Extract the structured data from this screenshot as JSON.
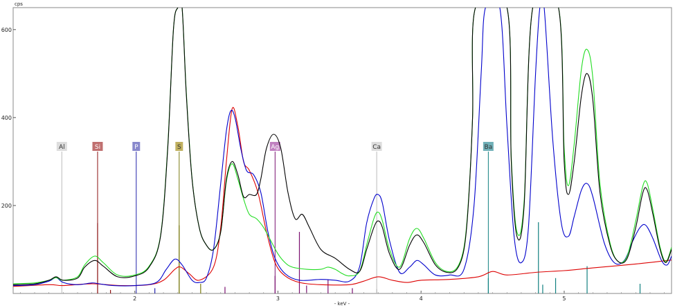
{
  "chart_data": {
    "type": "line",
    "ylabel": "cps",
    "xlabel": "- keV -",
    "xlim": [
      1.15,
      5.75
    ],
    "ylim": [
      0,
      650
    ],
    "x_ticks": [
      2,
      3,
      4,
      5
    ],
    "y_ticks": [
      200,
      400,
      600
    ],
    "grid": false,
    "legend": "none",
    "series": [
      {
        "color": "#000000",
        "points": [
          [
            1.15,
            20
          ],
          [
            1.3,
            22
          ],
          [
            1.4,
            30
          ],
          [
            1.45,
            38
          ],
          [
            1.5,
            30
          ],
          [
            1.6,
            35
          ],
          [
            1.65,
            60
          ],
          [
            1.72,
            75
          ],
          [
            1.78,
            62
          ],
          [
            1.88,
            38
          ],
          [
            2.0,
            40
          ],
          [
            2.1,
            60
          ],
          [
            2.18,
            130
          ],
          [
            2.23,
            330
          ],
          [
            2.27,
            600
          ],
          [
            2.3,
            650
          ],
          [
            2.33,
            650
          ],
          [
            2.36,
            450
          ],
          [
            2.4,
            260
          ],
          [
            2.45,
            150
          ],
          [
            2.5,
            110
          ],
          [
            2.55,
            100
          ],
          [
            2.6,
            140
          ],
          [
            2.64,
            260
          ],
          [
            2.68,
            300
          ],
          [
            2.72,
            270
          ],
          [
            2.76,
            220
          ],
          [
            2.8,
            225
          ],
          [
            2.85,
            225
          ],
          [
            2.88,
            260
          ],
          [
            2.92,
            330
          ],
          [
            2.97,
            362
          ],
          [
            3.02,
            330
          ],
          [
            3.07,
            230
          ],
          [
            3.12,
            170
          ],
          [
            3.17,
            180
          ],
          [
            3.22,
            150
          ],
          [
            3.3,
            100
          ],
          [
            3.4,
            80
          ],
          [
            3.5,
            55
          ],
          [
            3.57,
            50
          ],
          [
            3.62,
            100
          ],
          [
            3.67,
            150
          ],
          [
            3.7,
            165
          ],
          [
            3.73,
            150
          ],
          [
            3.78,
            90
          ],
          [
            3.85,
            55
          ],
          [
            3.92,
            110
          ],
          [
            3.97,
            133
          ],
          [
            4.02,
            115
          ],
          [
            4.1,
            65
          ],
          [
            4.18,
            48
          ],
          [
            4.25,
            55
          ],
          [
            4.3,
            100
          ],
          [
            4.33,
            200
          ],
          [
            4.36,
            400
          ],
          [
            4.38,
            650
          ],
          [
            4.6,
            650
          ],
          [
            4.63,
            300
          ],
          [
            4.67,
            130
          ],
          [
            4.72,
            200
          ],
          [
            4.78,
            650
          ],
          [
            4.96,
            650
          ],
          [
            5.0,
            300
          ],
          [
            5.03,
            225
          ],
          [
            5.07,
            300
          ],
          [
            5.12,
            450
          ],
          [
            5.16,
            500
          ],
          [
            5.2,
            440
          ],
          [
            5.25,
            230
          ],
          [
            5.32,
            110
          ],
          [
            5.38,
            72
          ],
          [
            5.44,
            80
          ],
          [
            5.5,
            150
          ],
          [
            5.55,
            230
          ],
          [
            5.58,
            235
          ],
          [
            5.62,
            180
          ],
          [
            5.67,
            100
          ],
          [
            5.71,
            70
          ],
          [
            5.75,
            100
          ]
        ]
      },
      {
        "color": "#22dd22",
        "points": [
          [
            1.15,
            22
          ],
          [
            1.3,
            24
          ],
          [
            1.4,
            30
          ],
          [
            1.45,
            36
          ],
          [
            1.5,
            30
          ],
          [
            1.6,
            38
          ],
          [
            1.65,
            65
          ],
          [
            1.72,
            85
          ],
          [
            1.78,
            70
          ],
          [
            1.88,
            42
          ],
          [
            2.0,
            42
          ],
          [
            2.1,
            62
          ],
          [
            2.18,
            132
          ],
          [
            2.23,
            335
          ],
          [
            2.27,
            600
          ],
          [
            2.3,
            650
          ],
          [
            2.33,
            650
          ],
          [
            2.36,
            455
          ],
          [
            2.4,
            262
          ],
          [
            2.45,
            150
          ],
          [
            2.5,
            110
          ],
          [
            2.55,
            100
          ],
          [
            2.6,
            140
          ],
          [
            2.64,
            255
          ],
          [
            2.68,
            295
          ],
          [
            2.72,
            260
          ],
          [
            2.76,
            215
          ],
          [
            2.8,
            180
          ],
          [
            2.85,
            170
          ],
          [
            2.9,
            150
          ],
          [
            2.95,
            120
          ],
          [
            3.0,
            90
          ],
          [
            3.05,
            70
          ],
          [
            3.1,
            60
          ],
          [
            3.2,
            55
          ],
          [
            3.3,
            55
          ],
          [
            3.35,
            60
          ],
          [
            3.4,
            55
          ],
          [
            3.45,
            45
          ],
          [
            3.5,
            40
          ],
          [
            3.57,
            50
          ],
          [
            3.62,
            110
          ],
          [
            3.67,
            170
          ],
          [
            3.7,
            185
          ],
          [
            3.73,
            165
          ],
          [
            3.78,
            100
          ],
          [
            3.85,
            60
          ],
          [
            3.92,
            125
          ],
          [
            3.97,
            148
          ],
          [
            4.02,
            125
          ],
          [
            4.1,
            70
          ],
          [
            4.18,
            50
          ],
          [
            4.25,
            58
          ],
          [
            4.3,
            105
          ],
          [
            4.33,
            205
          ],
          [
            4.36,
            400
          ],
          [
            4.38,
            650
          ],
          [
            4.6,
            650
          ],
          [
            4.63,
            310
          ],
          [
            4.67,
            140
          ],
          [
            4.72,
            210
          ],
          [
            4.78,
            650
          ],
          [
            4.96,
            650
          ],
          [
            5.0,
            330
          ],
          [
            5.03,
            245
          ],
          [
            5.07,
            340
          ],
          [
            5.12,
            510
          ],
          [
            5.16,
            555
          ],
          [
            5.2,
            490
          ],
          [
            5.25,
            250
          ],
          [
            5.32,
            115
          ],
          [
            5.38,
            72
          ],
          [
            5.44,
            85
          ],
          [
            5.5,
            165
          ],
          [
            5.55,
            245
          ],
          [
            5.58,
            250
          ],
          [
            5.62,
            190
          ],
          [
            5.67,
            105
          ],
          [
            5.71,
            72
          ],
          [
            5.75,
            105
          ]
        ]
      },
      {
        "color": "#0000cc",
        "points": [
          [
            1.15,
            18
          ],
          [
            1.3,
            20
          ],
          [
            1.4,
            28
          ],
          [
            1.45,
            36
          ],
          [
            1.5,
            25
          ],
          [
            1.6,
            20
          ],
          [
            1.7,
            24
          ],
          [
            1.75,
            22
          ],
          [
            1.85,
            18
          ],
          [
            2.0,
            18
          ],
          [
            2.15,
            25
          ],
          [
            2.22,
            55
          ],
          [
            2.28,
            78
          ],
          [
            2.33,
            65
          ],
          [
            2.4,
            30
          ],
          [
            2.45,
            25
          ],
          [
            2.5,
            35
          ],
          [
            2.55,
            100
          ],
          [
            2.6,
            250
          ],
          [
            2.64,
            370
          ],
          [
            2.67,
            415
          ],
          [
            2.7,
            400
          ],
          [
            2.74,
            330
          ],
          [
            2.78,
            280
          ],
          [
            2.83,
            270
          ],
          [
            2.88,
            230
          ],
          [
            2.93,
            140
          ],
          [
            2.98,
            80
          ],
          [
            3.05,
            45
          ],
          [
            3.15,
            30
          ],
          [
            3.3,
            32
          ],
          [
            3.4,
            30
          ],
          [
            3.5,
            28
          ],
          [
            3.57,
            60
          ],
          [
            3.62,
            160
          ],
          [
            3.67,
            215
          ],
          [
            3.7,
            225
          ],
          [
            3.73,
            205
          ],
          [
            3.78,
            120
          ],
          [
            3.85,
            48
          ],
          [
            3.92,
            60
          ],
          [
            3.97,
            75
          ],
          [
            4.02,
            65
          ],
          [
            4.1,
            42
          ],
          [
            4.2,
            42
          ],
          [
            4.3,
            55
          ],
          [
            4.37,
            200
          ],
          [
            4.42,
            500
          ],
          [
            4.45,
            650
          ],
          [
            4.55,
            650
          ],
          [
            4.6,
            380
          ],
          [
            4.65,
            130
          ],
          [
            4.7,
            70
          ],
          [
            4.75,
            150
          ],
          [
            4.8,
            500
          ],
          [
            4.83,
            650
          ],
          [
            4.86,
            650
          ],
          [
            4.92,
            350
          ],
          [
            4.98,
            160
          ],
          [
            5.03,
            130
          ],
          [
            5.07,
            175
          ],
          [
            5.12,
            235
          ],
          [
            5.16,
            250
          ],
          [
            5.2,
            220
          ],
          [
            5.28,
            115
          ],
          [
            5.35,
            70
          ],
          [
            5.42,
            75
          ],
          [
            5.48,
            120
          ],
          [
            5.53,
            150
          ],
          [
            5.57,
            155
          ],
          [
            5.62,
            125
          ],
          [
            5.68,
            75
          ],
          [
            5.72,
            65
          ],
          [
            5.75,
            85
          ]
        ]
      },
      {
        "color": "#dd0000",
        "points": [
          [
            1.15,
            16
          ],
          [
            1.4,
            20
          ],
          [
            1.5,
            18
          ],
          [
            1.7,
            22
          ],
          [
            1.9,
            18
          ],
          [
            2.1,
            20
          ],
          [
            2.2,
            30
          ],
          [
            2.28,
            55
          ],
          [
            2.32,
            60
          ],
          [
            2.38,
            45
          ],
          [
            2.45,
            30
          ],
          [
            2.55,
            60
          ],
          [
            2.6,
            150
          ],
          [
            2.64,
            300
          ],
          [
            2.68,
            420
          ],
          [
            2.72,
            380
          ],
          [
            2.76,
            300
          ],
          [
            2.8,
            280
          ],
          [
            2.86,
            230
          ],
          [
            2.92,
            140
          ],
          [
            2.98,
            70
          ],
          [
            3.05,
            40
          ],
          [
            3.15,
            25
          ],
          [
            3.3,
            20
          ],
          [
            3.5,
            20
          ],
          [
            3.6,
            28
          ],
          [
            3.7,
            38
          ],
          [
            3.8,
            30
          ],
          [
            3.9,
            25
          ],
          [
            4.0,
            30
          ],
          [
            4.2,
            32
          ],
          [
            4.4,
            38
          ],
          [
            4.5,
            50
          ],
          [
            4.6,
            42
          ],
          [
            4.8,
            48
          ],
          [
            5.0,
            52
          ],
          [
            5.2,
            58
          ],
          [
            5.5,
            67
          ],
          [
            5.75,
            76
          ]
        ]
      }
    ],
    "element_markers": [
      {
        "symbol": "Al",
        "energy": 1.49,
        "color": "#bbbbbb",
        "label_bg": "#dddddd",
        "label_fg": "#333333"
      },
      {
        "symbol": "Si",
        "energy": 1.74,
        "color": "#8b1010",
        "label_bg": "#c07070",
        "label_fg": "#ffffff"
      },
      {
        "symbol": "P",
        "energy": 2.01,
        "color": "#2222aa",
        "label_bg": "#8888cc",
        "label_fg": "#ffffff"
      },
      {
        "symbol": "S",
        "energy": 2.31,
        "color": "#7a7a10",
        "label_bg": "#c0b060",
        "label_fg": "#333333"
      },
      {
        "symbol": "Ag",
        "energy": 2.98,
        "color": "#7a1070",
        "label_bg": "#c080c0",
        "label_fg": "#ffffff"
      },
      {
        "symbol": "Ca",
        "energy": 3.69,
        "color": "#bbbbbb",
        "label_bg": "#dddddd",
        "label_fg": "#333333"
      },
      {
        "symbol": "Ba",
        "energy": 4.47,
        "color": "#108080",
        "label_bg": "#70b0b8",
        "label_fg": "#333333"
      }
    ],
    "reference_lines": [
      {
        "energy": 1.74,
        "height": 160,
        "color": "#8b1010"
      },
      {
        "energy": 1.83,
        "height": 8,
        "color": "#8b1010"
      },
      {
        "energy": 2.14,
        "height": 12,
        "color": "#2222aa"
      },
      {
        "energy": 2.31,
        "height": 155,
        "color": "#7a7a10"
      },
      {
        "energy": 2.46,
        "height": 22,
        "color": "#7a7a10"
      },
      {
        "energy": 2.63,
        "height": 15,
        "color": "#7a1070"
      },
      {
        "energy": 2.98,
        "height": 40,
        "color": "#7a1070"
      },
      {
        "energy": 3.15,
        "height": 140,
        "color": "#7a1070"
      },
      {
        "energy": 3.2,
        "height": 18,
        "color": "#7a1070"
      },
      {
        "energy": 3.35,
        "height": 32,
        "color": "#7a1070"
      },
      {
        "energy": 3.52,
        "height": 12,
        "color": "#7a1070"
      },
      {
        "energy": 3.69,
        "height": 10,
        "color": "#999999"
      },
      {
        "energy": 4.47,
        "height": 35,
        "color": "#108080"
      },
      {
        "energy": 4.82,
        "height": 162,
        "color": "#108080"
      },
      {
        "energy": 4.85,
        "height": 20,
        "color": "#108080"
      },
      {
        "energy": 4.94,
        "height": 35,
        "color": "#108080"
      },
      {
        "energy": 5.16,
        "height": 62,
        "color": "#108080"
      },
      {
        "energy": 5.53,
        "height": 22,
        "color": "#108080"
      }
    ]
  }
}
